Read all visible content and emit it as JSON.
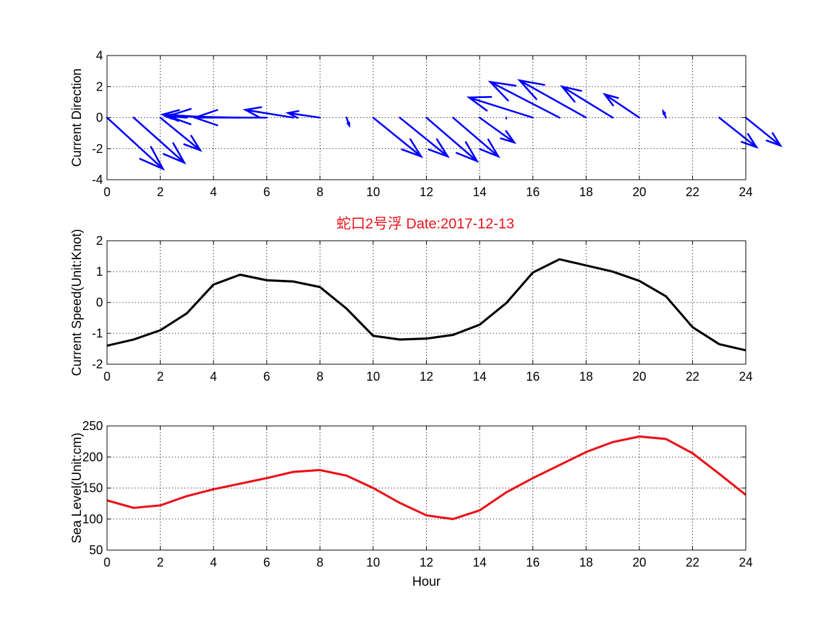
{
  "figure": {
    "title": "蛇口2号浮   Date:2017-12-13",
    "title_color": "#e8141b"
  },
  "chart_data": [
    {
      "type": "quiver",
      "ylabel": "Current Direction",
      "xlabel": "",
      "xlim": [
        0,
        24
      ],
      "ylim": [
        -4,
        4
      ],
      "xticks": [
        "0",
        "2",
        "4",
        "6",
        "8",
        "10",
        "12",
        "14",
        "16",
        "18",
        "20",
        "22",
        "24"
      ],
      "yticks": [
        "4",
        "2",
        "0",
        "-2",
        "-4"
      ],
      "grid": true,
      "color": "#0000ff",
      "arrows": [
        {
          "x": 0,
          "u": 2.1,
          "v": -3.3
        },
        {
          "x": 1,
          "u": 1.9,
          "v": -2.9
        },
        {
          "x": 2,
          "u": 1.5,
          "v": -2.1
        },
        {
          "x": 3,
          "u": -0.8,
          "v": 0.1
        },
        {
          "x": 4,
          "u": -1.9,
          "v": 0.2
        },
        {
          "x": 5,
          "u": -2.7,
          "v": 0.1
        },
        {
          "x": 6,
          "u": -2.7,
          "v": 0.0
        },
        {
          "x": 7,
          "u": -1.8,
          "v": 0.5
        },
        {
          "x": 8,
          "u": -1.2,
          "v": 0.3
        },
        {
          "x": 9,
          "u": 0.1,
          "v": -0.5
        },
        {
          "x": 10,
          "u": 1.8,
          "v": -2.5
        },
        {
          "x": 11,
          "u": 1.8,
          "v": -2.5
        },
        {
          "x": 12,
          "u": 1.9,
          "v": -2.8
        },
        {
          "x": 13,
          "u": 1.7,
          "v": -2.5
        },
        {
          "x": 14,
          "u": 1.3,
          "v": -1.6
        },
        {
          "x": 15,
          "u": 0.0,
          "v": -0.05
        },
        {
          "x": 16,
          "u": -2.4,
          "v": 1.3
        },
        {
          "x": 17,
          "u": -2.6,
          "v": 2.3
        },
        {
          "x": 18,
          "u": -2.5,
          "v": 2.4
        },
        {
          "x": 19,
          "u": -1.9,
          "v": 2.0
        },
        {
          "x": 20,
          "u": -1.3,
          "v": 1.5
        },
        {
          "x": 21,
          "u": -0.1,
          "v": 0.4
        },
        {
          "x": 23,
          "u": 1.4,
          "v": -1.9
        },
        {
          "x": 24,
          "u": 1.3,
          "v": -1.8
        }
      ]
    },
    {
      "type": "line",
      "ylabel": "Current Speed(Unit:Knot)",
      "xlabel": "",
      "xlim": [
        0,
        24
      ],
      "ylim": [
        -2,
        2
      ],
      "xticks": [
        "0",
        "2",
        "4",
        "6",
        "8",
        "10",
        "12",
        "14",
        "16",
        "18",
        "20",
        "22",
        "24"
      ],
      "yticks": [
        "2",
        "1",
        "0",
        "-1",
        "-2"
      ],
      "grid": true,
      "series": [
        {
          "color": "#000000",
          "x": [
            0,
            1,
            2,
            3,
            4,
            5,
            6,
            7,
            8,
            9,
            10,
            11,
            12,
            13,
            14,
            15,
            16,
            17,
            18,
            19,
            20,
            21,
            22,
            23,
            24
          ],
          "y": [
            -1.4,
            -1.2,
            -0.9,
            -0.35,
            0.58,
            0.9,
            0.72,
            0.68,
            0.5,
            -0.2,
            -1.08,
            -1.2,
            -1.17,
            -1.05,
            -0.72,
            -0.02,
            0.97,
            1.4,
            1.2,
            1.0,
            0.7,
            0.2,
            -0.8,
            -1.35,
            -1.55
          ]
        }
      ]
    },
    {
      "type": "line",
      "ylabel": "Sea Level(Unit:cm)",
      "xlabel": "Hour",
      "xlim": [
        0,
        24
      ],
      "ylim": [
        50,
        250
      ],
      "xticks": [
        "0",
        "2",
        "4",
        "6",
        "8",
        "10",
        "12",
        "14",
        "16",
        "18",
        "20",
        "22",
        "24"
      ],
      "yticks": [
        "250",
        "200",
        "150",
        "100",
        "50"
      ],
      "grid": true,
      "series": [
        {
          "color": "#e8141b",
          "x": [
            0,
            1,
            2,
            3,
            4,
            5,
            6,
            7,
            8,
            9,
            10,
            11,
            12,
            13,
            14,
            15,
            16,
            17,
            18,
            19,
            20,
            21,
            22,
            23,
            24
          ],
          "y": [
            130,
            118,
            122,
            137,
            148,
            157,
            166,
            176,
            179,
            170,
            150,
            126,
            106,
            100,
            114,
            143,
            166,
            187,
            208,
            224,
            233,
            229,
            206,
            173,
            139
          ]
        }
      ]
    }
  ]
}
